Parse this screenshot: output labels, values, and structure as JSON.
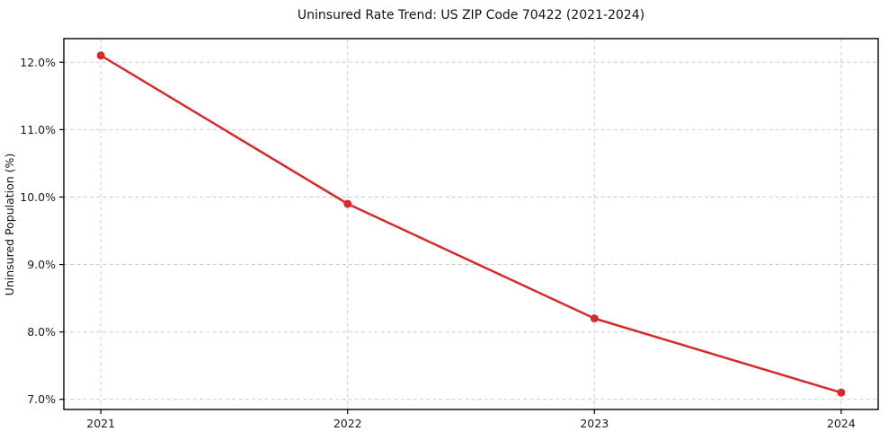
{
  "figure": {
    "background": "#ffffff"
  },
  "chart_data": {
    "type": "line",
    "title": "Uninsured Rate Trend: US ZIP Code 70422 (2021-2024)",
    "xlabel": "",
    "ylabel": "Uninsured Population (%)",
    "x": [
      2021,
      2022,
      2023,
      2024
    ],
    "series": [
      {
        "values": [
          12.1,
          9.9,
          8.2,
          7.1
        ],
        "color": "#d62b2e",
        "marker": "circle",
        "marker_color": "#d62b2e"
      }
    ],
    "xtick_values": [
      2021,
      2022,
      2023,
      2024
    ],
    "xtick_labels": [
      "2021",
      "2022",
      "2023",
      "2024"
    ],
    "ytick_values": [
      7.0,
      8.0,
      9.0,
      10.0,
      11.0,
      12.0
    ],
    "ytick_labels": [
      "7.0%",
      "8.0%",
      "9.0%",
      "10.0%",
      "11.0%",
      "12.0%"
    ],
    "xlim": [
      2020.85,
      2024.15
    ],
    "ylim": [
      6.85,
      12.35
    ],
    "grid": true,
    "grid_style": "dashed",
    "legend": "none",
    "colors": {
      "grid": "#cbcbcb",
      "spine": "#000000",
      "tick": "#000000",
      "background": "#ffffff"
    }
  }
}
